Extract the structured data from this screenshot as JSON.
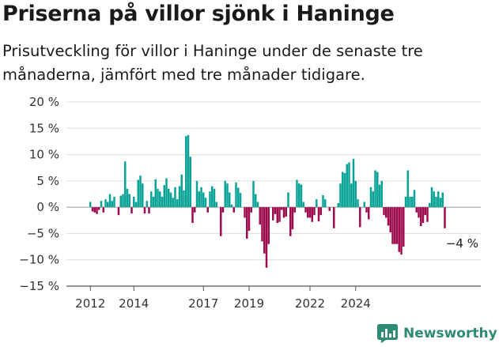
{
  "title": "Priserna på villor sjönk i Haninge",
  "subtitle": "Prisutveckling för villor i Haninge under de senaste tre månaderna, jämfört med tre månader tidigare.",
  "brand": {
    "name": "Newsworthy",
    "icon": "chart-bubble-icon",
    "color": "#2e8b73"
  },
  "colors": {
    "positive": "#0aa397",
    "negative": "#9e0b4f",
    "grid": "#dcdcdc"
  },
  "chart_data": {
    "type": "bar",
    "ylim": [
      -15,
      20
    ],
    "y_ticks": [
      20,
      15,
      10,
      5,
      0,
      -5,
      -10,
      -15
    ],
    "y_tick_labels": [
      "20 %",
      "15 %",
      "10 %",
      "5 %",
      "0 %",
      "−5 %",
      "−10 %",
      "−15 %"
    ],
    "x_tick_labels": [
      "2012",
      "2014",
      "2017",
      "2019",
      "2022",
      "2024"
    ],
    "x_tick_index": [
      0,
      20,
      52,
      73,
      101,
      122
    ],
    "grid": true,
    "annotation": "−4 %",
    "values": [
      1,
      -0.8,
      -1,
      -1.3,
      -0.5,
      1.2,
      -1,
      1.5,
      1,
      2.5,
      1.2,
      2,
      0,
      -1.5,
      2.2,
      2.5,
      8.7,
      3.5,
      2.5,
      -1.2,
      2,
      1,
      5.2,
      6,
      4.5,
      -1.2,
      1.2,
      -1.2,
      3,
      2,
      5.3,
      3.5,
      3,
      2,
      4.2,
      5.5,
      3.5,
      2.8,
      1.8,
      3.8,
      1.5,
      4,
      6.2,
      3.2,
      13.5,
      13.7,
      9.6,
      -3,
      -1,
      5,
      3,
      3.8,
      2.8,
      1.8,
      -1,
      3,
      4,
      3.5,
      1,
      0,
      -5.5,
      -1,
      5,
      4.5,
      2.8,
      0.5,
      -1,
      4.7,
      3.7,
      2.7,
      0,
      -2,
      -6,
      -4.5,
      -1,
      5,
      2.5,
      1,
      -3.3,
      -6.5,
      -8.8,
      -11.5,
      -7,
      0,
      -2.5,
      -1.3,
      -3,
      -2.8,
      -0.5,
      -2,
      -1.8,
      2.8,
      -5.5,
      -4.2,
      -1,
      5.2,
      4.5,
      4.3,
      1,
      -1,
      -2,
      -2,
      -2.8,
      -1.5,
      1.5,
      -2.7,
      -1.5,
      2.3,
      1.5,
      0,
      -0.7,
      0,
      -4,
      0,
      0.8,
      4.5,
      6.7,
      6.5,
      8.2,
      8.5,
      4.5,
      9.2,
      5,
      1.5,
      -3.8,
      0,
      1,
      -1,
      -2.3,
      3.8,
      3,
      7,
      6.7,
      4.3,
      5,
      -1.5,
      -2,
      -3.5,
      -4.8,
      -7,
      -7,
      -7,
      -8.5,
      -9,
      -7.5,
      2,
      7,
      2,
      2,
      3.3,
      -1,
      -2,
      -3.6,
      -3,
      -1.5,
      -2.8,
      0.8,
      3.8,
      3,
      2,
      3,
      1.8,
      2.8,
      -4
    ]
  }
}
